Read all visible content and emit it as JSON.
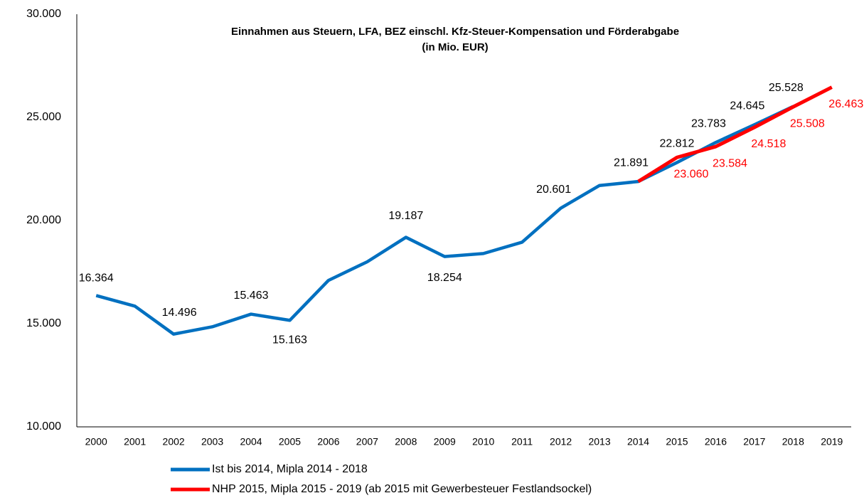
{
  "chart_data": {
    "type": "line",
    "title": "Einnahmen aus Steuern, LFA, BEZ einschl. Kfz-Steuer-Kompensation und Förderabgabe",
    "subtitle": "(in Mio. EUR)",
    "categories": [
      "2000",
      "2001",
      "2002",
      "2003",
      "2004",
      "2005",
      "2006",
      "2007",
      "2008",
      "2009",
      "2010",
      "2011",
      "2012",
      "2013",
      "2014",
      "2015",
      "2016",
      "2017",
      "2018",
      "2019"
    ],
    "series": [
      {
        "name": "Ist bis 2014, Mipla 2014 - 2018",
        "color": "#0070c0",
        "values": [
          16364,
          15850,
          14496,
          14850,
          15463,
          15163,
          17100,
          18000,
          19187,
          18254,
          18400,
          18950,
          20601,
          21700,
          21891,
          22812,
          23783,
          24645,
          25528,
          null
        ],
        "value_labels": [
          "16.364",
          null,
          "14.496",
          null,
          "15.463",
          "15.163",
          null,
          null,
          "19.187",
          "18.254",
          null,
          null,
          "20.601",
          null,
          "21.891",
          "22.812",
          "23.783",
          "24.645",
          "25.528",
          null
        ]
      },
      {
        "name": "NHP 2015, Mipla 2015 - 2019 (ab 2015 mit Gewerbesteuer Festlandsockel)",
        "color": "#ff0000",
        "values": [
          null,
          null,
          null,
          null,
          null,
          null,
          null,
          null,
          null,
          null,
          null,
          null,
          null,
          null,
          21891,
          23060,
          23584,
          24518,
          25508,
          26463
        ],
        "value_labels": [
          null,
          null,
          null,
          null,
          null,
          null,
          null,
          null,
          null,
          null,
          null,
          null,
          null,
          null,
          null,
          "23.060",
          "23.584",
          "24.518",
          "25.508",
          "26.463"
        ]
      }
    ],
    "ylim": [
      10000,
      30000
    ],
    "yticks": [
      {
        "value": 10000,
        "label": "10.000"
      },
      {
        "value": 15000,
        "label": "15.000"
      },
      {
        "value": 20000,
        "label": "20.000"
      },
      {
        "value": 25000,
        "label": "25.000"
      },
      {
        "value": 30000,
        "label": "30.000"
      }
    ],
    "grid": false
  }
}
